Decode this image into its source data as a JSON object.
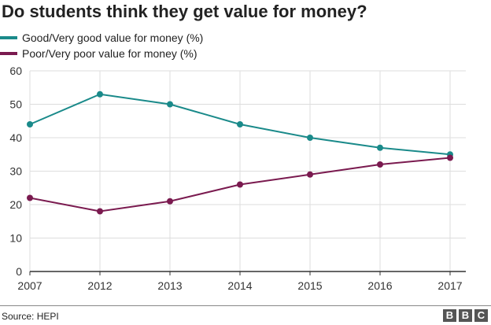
{
  "header": {
    "title": "Do students think they get value for money?"
  },
  "footer": {
    "source": "Source: HEPI",
    "logo": [
      "B",
      "B",
      "C"
    ]
  },
  "colors": {
    "good": "#1a8a8a",
    "poor": "#7a1a4f",
    "grid": "#dddddd",
    "axis": "#333333"
  },
  "chart_data": {
    "type": "line",
    "title": "Do students think they get value for money?",
    "xlabel": "",
    "ylabel": "",
    "categories": [
      "2007",
      "2012",
      "2013",
      "2014",
      "2015",
      "2016",
      "2017"
    ],
    "yticks": [
      0,
      10,
      20,
      30,
      40,
      50,
      60
    ],
    "ylim": [
      0,
      60
    ],
    "grid": true,
    "legend": "top-left",
    "series": [
      {
        "name": "Good/Very good value for money (%)",
        "color": "#1a8a8a",
        "values": [
          44,
          53,
          50,
          44,
          40,
          37,
          35
        ]
      },
      {
        "name": "Poor/Very poor value for money (%)",
        "color": "#7a1a4f",
        "values": [
          22,
          18,
          21,
          26,
          29,
          32,
          34
        ]
      }
    ]
  }
}
